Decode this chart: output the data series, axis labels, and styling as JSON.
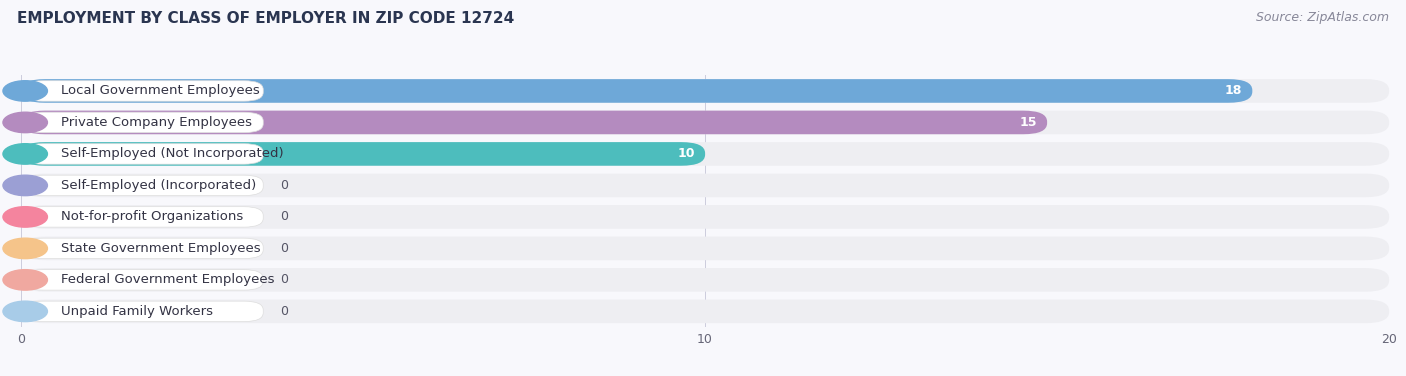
{
  "title": "EMPLOYMENT BY CLASS OF EMPLOYER IN ZIP CODE 12724",
  "source": "Source: ZipAtlas.com",
  "categories": [
    "Local Government Employees",
    "Private Company Employees",
    "Self-Employed (Not Incorporated)",
    "Self-Employed (Incorporated)",
    "Not-for-profit Organizations",
    "State Government Employees",
    "Federal Government Employees",
    "Unpaid Family Workers"
  ],
  "values": [
    18,
    15,
    10,
    0,
    0,
    0,
    0,
    0
  ],
  "bar_colors": [
    "#6ea8d8",
    "#b48bbf",
    "#4dbdbd",
    "#9b9fd4",
    "#f4849e",
    "#f5c48a",
    "#f0a8a0",
    "#a8cce8"
  ],
  "label_bg_colors": [
    "#ffffff",
    "#ffffff",
    "#ffffff",
    "#ffffff",
    "#ffffff",
    "#ffffff",
    "#ffffff",
    "#ffffff"
  ],
  "row_bg_color": "#eeeef2",
  "row_bg_color_alt": "#f0f0f5",
  "xlim_min": 0,
  "xlim_max": 20,
  "xticks": [
    0,
    10,
    20
  ],
  "background_color": "#f8f8fc",
  "title_fontsize": 11,
  "source_fontsize": 9,
  "label_fontsize": 9.5,
  "value_fontsize": 9
}
